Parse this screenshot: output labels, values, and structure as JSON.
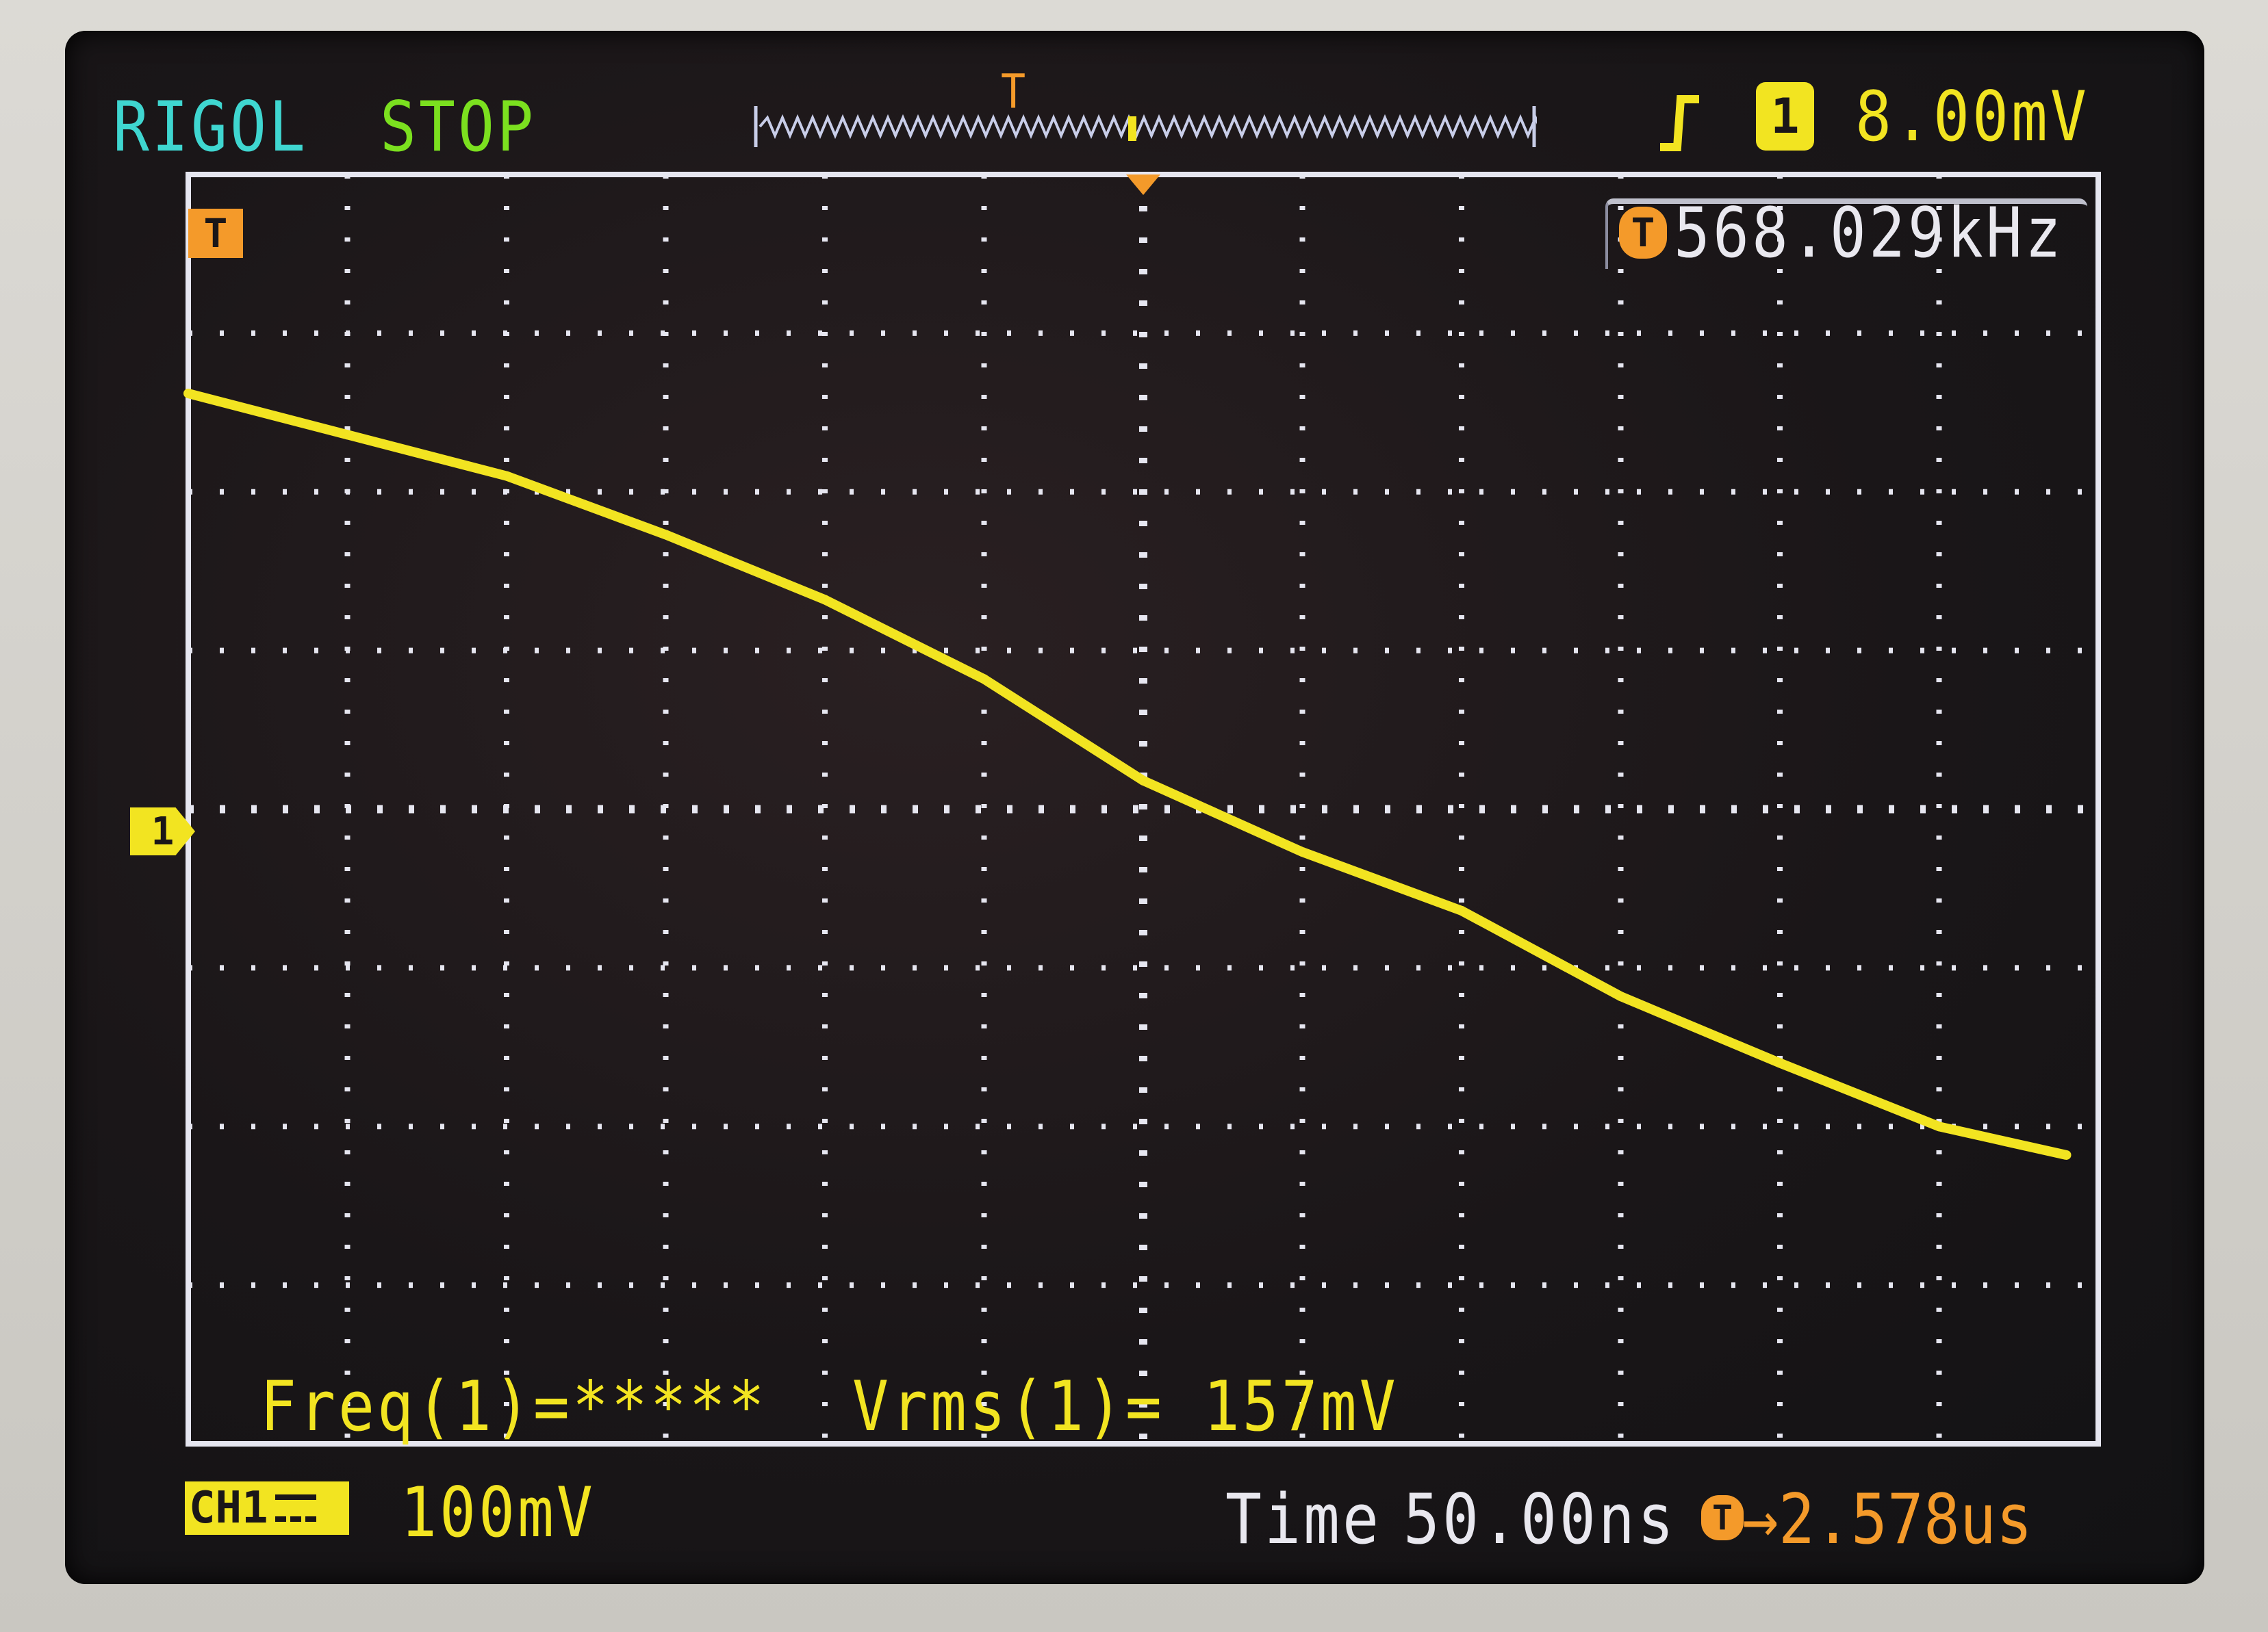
{
  "header": {
    "brand": "RIGOL",
    "run_state": "STOP",
    "trigger_position_marker": "T",
    "trigger_edge_icon": "rising-edge-icon",
    "trigger_source": "1",
    "trigger_level": "8.00mV"
  },
  "frequency_counter": {
    "icon": "T",
    "value": "568.029kHz"
  },
  "trigger_marker_label": "T",
  "channel_marker_label": "1",
  "measurements": {
    "freq": "Freq(1)=*****",
    "vrms": "Vrms(1)= 157mV"
  },
  "footer": {
    "channel_label": "CH1",
    "coupling_icon": "dc-coupling-icon",
    "volts_per_div": "100mV",
    "time_label": "Time",
    "time_per_div": "50.00ns",
    "trigger_offset": "→2.578us",
    "trigger_offset_icon": "T"
  },
  "colors": {
    "channel1": "#f2e421",
    "brand": "#3fd6d0",
    "run_state": "#7be01f",
    "trigger": "#f49a2a",
    "grid": "#e6e6f0"
  },
  "chart_data": {
    "type": "line",
    "xlabel": "",
    "ylabel": "",
    "x_units": "ns",
    "y_units": "mV",
    "xlim": [
      -300,
      300
    ],
    "ylim": [
      -400,
      400
    ],
    "x_divisions": 12,
    "y_divisions": 8,
    "grid": true,
    "series": [
      {
        "x": [
          -300,
          -250,
          -200,
          -150,
          -100,
          -50,
          0,
          50,
          100,
          150,
          200,
          250,
          290
        ],
        "y": [
          262,
          236,
          210,
          173,
          132,
          82,
          18,
          -27,
          -64,
          -118,
          -160,
          -200,
          -218
        ]
      }
    ]
  }
}
